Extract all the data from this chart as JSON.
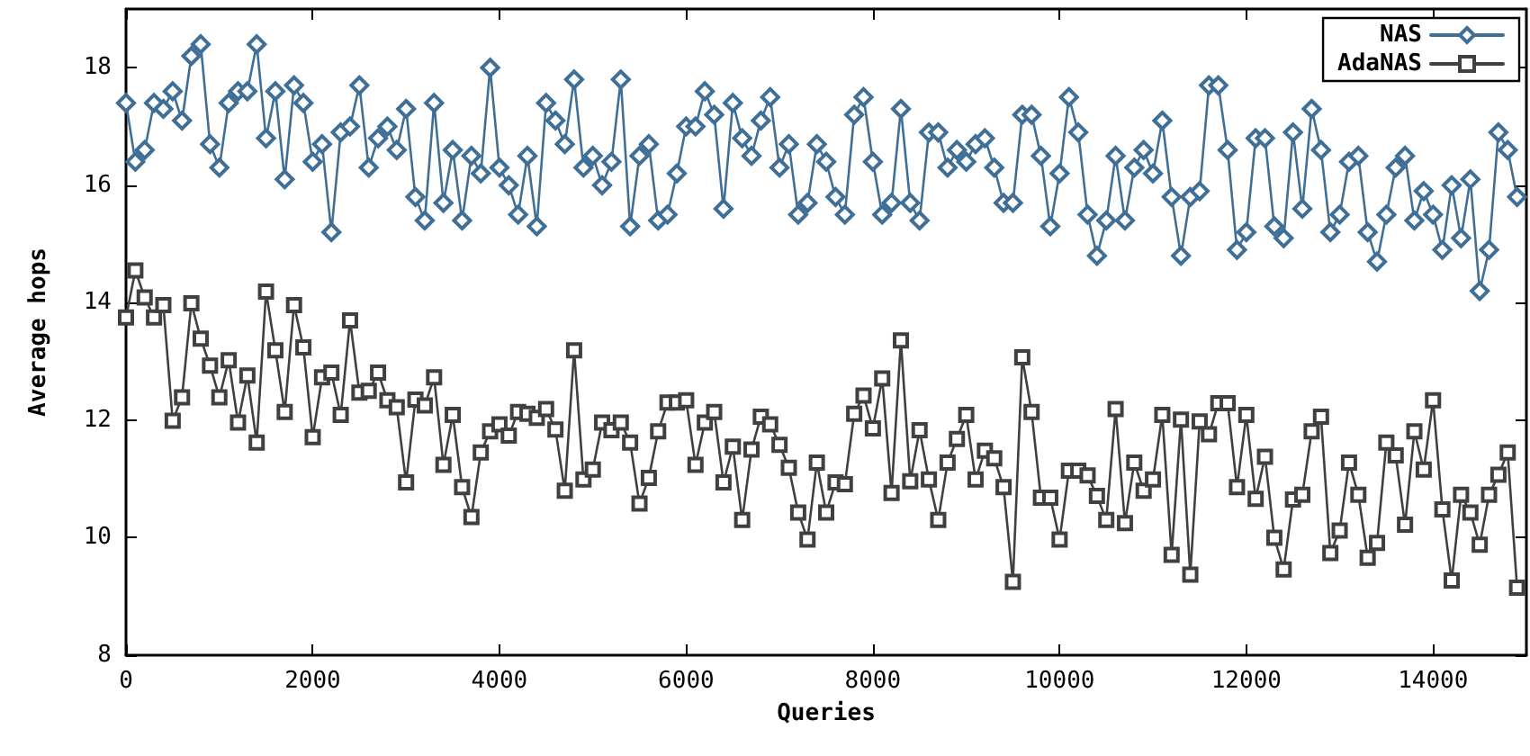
{
  "chart_data": {
    "type": "line",
    "xlabel": "Queries",
    "ylabel": "Average hops",
    "xlim": [
      0,
      15000
    ],
    "xticks": [
      0,
      2000,
      4000,
      6000,
      8000,
      10000,
      12000,
      14000
    ],
    "ylim": [
      8,
      19
    ],
    "yticks": [
      8,
      10,
      12,
      14,
      16,
      18
    ],
    "grid": false,
    "legend": "top right",
    "line_style": "solid",
    "series": [
      {
        "name": "NAS",
        "color": "#3f6f96",
        "marker": "diamond",
        "values": [
          17.4,
          16.4,
          16.6,
          17.4,
          17.3,
          17.6,
          17.1,
          18.2,
          18.4,
          16.7,
          16.3,
          17.4,
          17.6,
          17.6,
          18.4,
          16.8,
          17.6,
          16.1,
          17.7,
          17.4,
          16.4,
          16.7,
          15.2,
          16.9,
          17.0,
          17.7,
          16.3,
          16.8,
          17.0,
          16.6,
          17.3,
          15.8,
          15.4,
          17.4,
          15.7,
          16.6,
          15.4,
          16.5,
          16.2,
          18.0,
          16.3,
          16.0,
          15.5,
          16.5,
          15.3,
          17.4,
          17.1,
          16.7,
          17.8,
          16.3,
          16.5,
          16.0,
          16.4,
          17.8,
          15.3,
          16.5,
          16.7,
          15.4,
          15.5,
          16.2,
          17.0,
          17.0,
          17.6,
          17.2,
          15.6,
          17.4,
          16.8,
          16.5,
          17.1,
          17.5,
          16.3,
          16.7,
          15.5,
          15.7,
          16.7,
          16.4,
          15.8,
          15.5,
          17.2,
          17.5,
          16.4,
          15.5,
          15.7,
          17.3,
          15.7,
          15.4,
          16.9,
          16.9,
          16.3,
          16.6,
          16.4,
          16.7,
          16.8,
          16.3,
          15.7,
          15.7,
          17.2,
          17.2,
          16.5,
          15.3,
          16.2,
          17.5,
          16.9,
          15.5,
          14.8,
          15.4,
          16.5,
          15.4,
          16.3,
          16.6,
          16.2,
          17.1,
          15.8,
          14.8,
          15.8,
          15.9,
          17.7,
          17.7,
          16.6,
          14.9,
          15.2,
          16.8,
          16.8,
          15.3,
          15.1,
          16.9,
          15.6,
          17.3,
          16.6,
          15.2,
          15.5,
          16.4,
          16.5,
          15.2,
          14.7,
          15.5,
          16.3,
          16.5,
          15.4,
          15.9,
          15.5,
          14.9,
          16.0,
          15.1,
          16.1,
          14.2,
          14.9,
          16.9,
          16.6,
          15.8
        ]
      },
      {
        "name": "AdaNAS",
        "color": "#404040",
        "marker": "square",
        "values": [
          13.75,
          14.55,
          14.09,
          13.75,
          13.96,
          11.99,
          12.39,
          13.99,
          13.39,
          12.93,
          12.39,
          13.02,
          11.96,
          12.76,
          11.62,
          14.19,
          13.19,
          12.14,
          13.96,
          13.24,
          11.71,
          12.73,
          12.81,
          12.09,
          13.7,
          12.47,
          12.5,
          12.81,
          12.34,
          12.22,
          10.94,
          12.35,
          12.25,
          12.73,
          11.24,
          12.09,
          10.86,
          10.35,
          11.45,
          11.81,
          11.93,
          11.74,
          12.14,
          12.11,
          12.04,
          12.19,
          11.84,
          10.8,
          13.19,
          10.99,
          11.16,
          11.96,
          11.83,
          11.96,
          11.62,
          10.58,
          11.02,
          11.81,
          12.3,
          12.3,
          12.34,
          11.24,
          11.96,
          12.14,
          10.94,
          11.55,
          10.3,
          11.5,
          12.06,
          11.93,
          11.58,
          11.19,
          10.43,
          9.97,
          11.28,
          10.43,
          10.94,
          10.91,
          12.11,
          12.42,
          11.86,
          12.71,
          10.76,
          13.36,
          10.96,
          11.83,
          10.99,
          10.3,
          11.28,
          11.68,
          12.09,
          10.99,
          11.48,
          11.35,
          10.86,
          9.25,
          13.07,
          12.14,
          10.68,
          10.68,
          9.97,
          11.14,
          11.14,
          11.06,
          10.71,
          10.3,
          12.19,
          10.25,
          11.28,
          10.8,
          10.99,
          12.09,
          9.71,
          12.01,
          9.37,
          11.98,
          11.76,
          12.29,
          12.29,
          10.86,
          12.09,
          10.66,
          11.38,
          10.0,
          9.46,
          10.65,
          10.73,
          11.81,
          12.06,
          9.74,
          10.12,
          11.28,
          10.73,
          9.66,
          9.91,
          11.62,
          11.4,
          10.22,
          11.81,
          11.16,
          12.34,
          10.48,
          9.27,
          10.73,
          10.43,
          9.88,
          10.73,
          11.07,
          11.45,
          9.15
        ]
      }
    ],
    "x": [
      0,
      100,
      200,
      300,
      400,
      500,
      600,
      700,
      800,
      900,
      1000,
      1100,
      1200,
      1300,
      1400,
      1500,
      1600,
      1700,
      1800,
      1900,
      2000,
      2100,
      2200,
      2300,
      2400,
      2500,
      2600,
      2700,
      2800,
      2900,
      3000,
      3100,
      3200,
      3300,
      3400,
      3500,
      3600,
      3700,
      3800,
      3900,
      4000,
      4100,
      4200,
      4300,
      4400,
      4500,
      4600,
      4700,
      4800,
      4900,
      5000,
      5100,
      5200,
      5300,
      5400,
      5500,
      5600,
      5700,
      5800,
      5900,
      6000,
      6100,
      6200,
      6300,
      6400,
      6500,
      6600,
      6700,
      6800,
      6900,
      7000,
      7100,
      7200,
      7300,
      7400,
      7500,
      7600,
      7700,
      7800,
      7900,
      8000,
      8100,
      8200,
      8300,
      8400,
      8500,
      8600,
      8700,
      8800,
      8900,
      9000,
      9100,
      9200,
      9300,
      9400,
      9500,
      9600,
      9700,
      9800,
      9900,
      10000,
      10100,
      10200,
      10300,
      10400,
      10500,
      10600,
      10700,
      10800,
      10900,
      11000,
      11100,
      11200,
      11300,
      11400,
      11500,
      11600,
      11700,
      11800,
      11900,
      12000,
      12100,
      12200,
      12300,
      12400,
      12500,
      12600,
      12700,
      12800,
      12900,
      13000,
      13100,
      13200,
      13300,
      13400,
      13500,
      13600,
      13700,
      13800,
      13900,
      14000,
      14100,
      14200,
      14300,
      14400,
      14500,
      14600,
      14700,
      14800,
      14900
    ]
  }
}
